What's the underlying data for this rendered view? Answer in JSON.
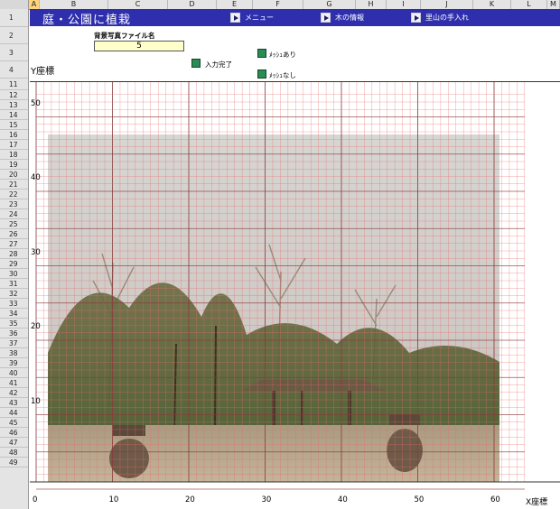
{
  "spreadsheet": {
    "columns": [
      "A",
      "B",
      "C",
      "D",
      "E",
      "F",
      "G",
      "H",
      "I",
      "J",
      "K",
      "L",
      "M"
    ],
    "selected_column": "A",
    "rows": [
      "1",
      "2",
      "3",
      "4",
      "11",
      "12",
      "13",
      "14",
      "15",
      "16",
      "17",
      "18",
      "19",
      "20",
      "21",
      "22",
      "23",
      "24",
      "25",
      "26",
      "27",
      "28",
      "29",
      "30",
      "31",
      "32",
      "33",
      "34",
      "35",
      "36",
      "37",
      "38",
      "39",
      "40",
      "41",
      "42",
      "43",
      "44",
      "45",
      "46",
      "47",
      "48",
      "49"
    ]
  },
  "header": {
    "title": "庭・公園に植栽",
    "nav": [
      {
        "label": "メニュー"
      },
      {
        "label": "木の情報"
      },
      {
        "label": "里山の手入れ"
      }
    ]
  },
  "controls": {
    "file_label": "背景写真ファイル名",
    "file_value": "5",
    "done_label": "入力完了",
    "mesh_on_label": "ﾒｯｼｭあり",
    "mesh_off_label": "ﾒｯｼｭなし"
  },
  "plot": {
    "y_axis_label": "Y座標",
    "x_axis_label": "X座標",
    "x_ticks": [
      "0",
      "10",
      "20",
      "30",
      "40",
      "50",
      "60"
    ],
    "y_ticks": [
      "50",
      "40",
      "30",
      "20",
      "10"
    ],
    "grid_color": "#e86a6a",
    "major_grid_color": "#8a3a3a"
  }
}
